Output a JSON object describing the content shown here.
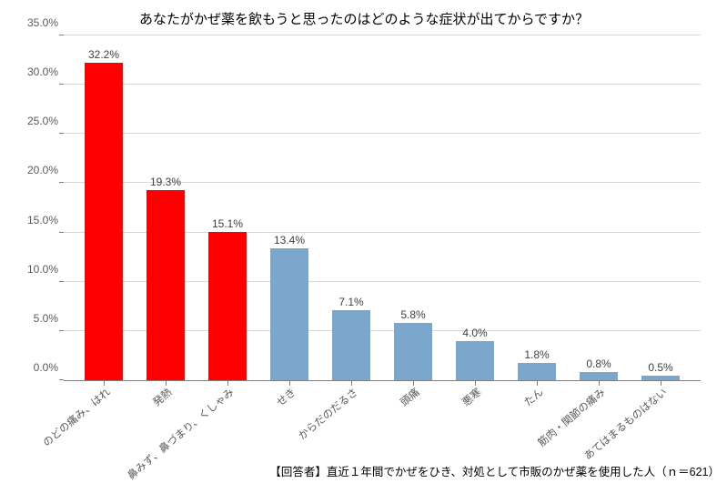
{
  "chart": {
    "type": "bar",
    "title": "あなたがかぜ薬を飲もうと思ったのはどのような症状が出てからですか？",
    "title_fontsize": 15,
    "label_fontsize": 12,
    "footnote": "【回答者】直近１年間でかぜをひき、対処として市販のかぜ薬を使用した人（ｎ＝621）",
    "background_color": "#ffffff",
    "grid_color": "#d9d9d9",
    "axis_color": "#808080",
    "text_color": "#595959",
    "value_label_color": "#404040",
    "ylim": [
      0,
      35
    ],
    "ytick_step": 5,
    "yticks": [
      "0.0%",
      "5.0%",
      "10.0%",
      "15.0%",
      "20.0%",
      "25.0%",
      "30.0%",
      "35.0%"
    ],
    "bar_width": 0.62,
    "value_suffix": "%",
    "highlight_color": "#ff0000",
    "normal_color": "#7ba7cc",
    "categories": [
      "のどの痛み、はれ",
      "発熱",
      "鼻みず、鼻づまり、くしゃみ",
      "せき",
      "からだのだるさ",
      "頭痛",
      "悪寒",
      "たん",
      "筋肉・関節の痛み",
      "あてはまるものはない"
    ],
    "values": [
      32.2,
      19.3,
      15.1,
      13.4,
      7.1,
      5.8,
      4.0,
      1.8,
      0.8,
      0.5
    ],
    "value_labels": [
      "32.2%",
      "19.3%",
      "15.1%",
      "13.4%",
      "7.1%",
      "5.8%",
      "4.0%",
      "1.8%",
      "0.8%",
      "0.5%"
    ],
    "bar_colors": [
      "#ff0000",
      "#ff0000",
      "#ff0000",
      "#7ba7cc",
      "#7ba7cc",
      "#7ba7cc",
      "#7ba7cc",
      "#7ba7cc",
      "#7ba7cc",
      "#7ba7cc"
    ]
  }
}
